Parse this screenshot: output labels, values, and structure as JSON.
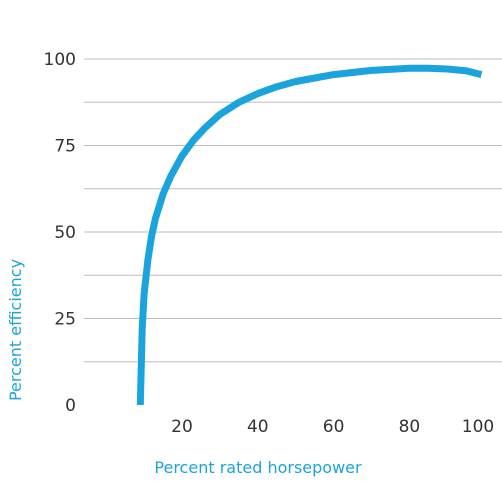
{
  "chart_data": {
    "type": "line",
    "title": "",
    "xlabel": "Percent rated horsepower",
    "ylabel": "Percent efficiency",
    "xlim": [
      0,
      100
    ],
    "ylim": [
      0,
      110
    ],
    "x_ticks": [
      20,
      40,
      60,
      80,
      100
    ],
    "y_ticks": [
      0,
      25,
      50,
      75,
      100
    ],
    "grid": "horizontal",
    "series": [
      {
        "color": "#1ba3dd",
        "x": [
          9,
          9.5,
          10,
          11,
          12,
          13,
          15,
          17,
          20,
          23,
          26,
          30,
          35,
          40,
          45,
          50,
          60,
          70,
          80,
          85,
          90,
          95,
          99
        ],
        "y": [
          0,
          22,
          32,
          42,
          49,
          54,
          61,
          66,
          72,
          76.5,
          80,
          84,
          87.5,
          90,
          92,
          93.5,
          95.5,
          96.7,
          97.3,
          97.3,
          97.1,
          96.6,
          95.5
        ]
      }
    ]
  },
  "colors": {
    "accent": "#1ba3dd",
    "grid": "#bdbdbd",
    "tick_text": "#333333"
  }
}
